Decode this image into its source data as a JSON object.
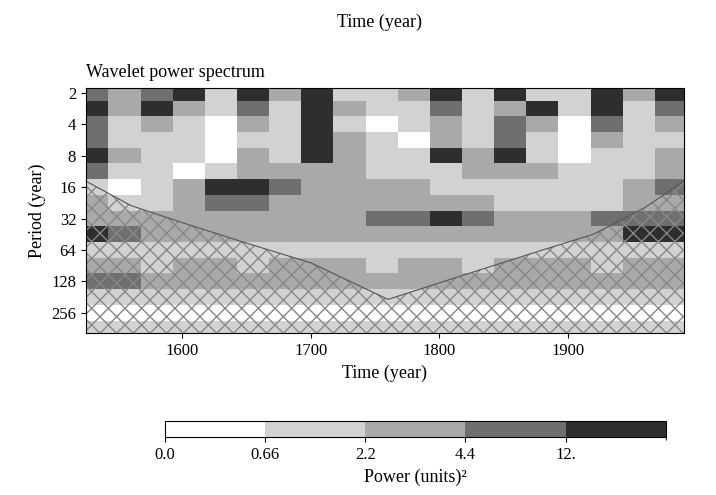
{
  "chart_data": {
    "type": "heatmap",
    "title": "Wavelet power spectrum",
    "top_label": "Time (year)",
    "x_label": "Time (year)",
    "y_label": "Period (year)",
    "log": "y",
    "grid": false,
    "xlim": [
      1525,
      1990
    ],
    "xticks": [
      1600,
      1700,
      1800,
      1900
    ],
    "ylim": [
      400,
      1.8
    ],
    "yticks": [
      2,
      4,
      8,
      16,
      32,
      64,
      128,
      256
    ],
    "x": [
      1530,
      1555,
      1580,
      1605,
      1630,
      1655,
      1680,
      1705,
      1730,
      1755,
      1780,
      1805,
      1830,
      1855,
      1880,
      1905,
      1930,
      1955,
      1980
    ],
    "periods": [
      2,
      2.8,
      4,
      5.7,
      8,
      11,
      16,
      23,
      32,
      45,
      64,
      90,
      128,
      181,
      256,
      362
    ],
    "cells": [
      [
        8,
        3,
        6,
        14,
        1.5,
        14,
        3,
        14,
        1.5,
        1,
        3,
        14,
        1.5,
        14,
        1,
        1.5,
        14,
        3,
        14
      ],
      [
        14,
        3,
        14,
        3,
        1,
        6,
        1.5,
        14,
        3,
        1,
        1,
        6,
        1,
        3,
        14,
        1,
        14,
        1,
        6
      ],
      [
        6,
        1,
        3,
        1,
        0.5,
        3,
        1,
        14,
        1,
        0.5,
        1,
        3,
        1,
        6,
        3,
        0.5,
        6,
        1,
        3
      ],
      [
        6,
        1,
        1.5,
        1,
        0.5,
        1,
        1,
        14,
        3,
        1,
        0.5,
        3,
        1,
        6,
        1,
        0.5,
        3,
        1,
        1.5
      ],
      [
        14,
        3,
        1,
        1,
        0.5,
        3,
        1,
        14,
        3,
        1,
        1,
        14,
        3,
        14,
        1,
        0.5,
        1,
        1,
        3
      ],
      [
        6,
        1.5,
        1,
        0.5,
        1,
        3,
        3,
        3,
        3,
        1,
        1,
        1,
        3,
        3,
        3,
        1,
        1,
        1,
        3
      ],
      [
        1,
        0.5,
        1,
        3,
        14,
        14,
        6,
        3,
        3,
        3,
        3,
        1,
        1,
        1,
        1,
        1,
        1,
        3,
        6
      ],
      [
        3,
        1,
        1,
        3,
        6,
        6,
        3,
        3,
        3,
        3,
        3,
        3,
        3,
        1.5,
        1,
        1,
        1.5,
        3,
        3
      ],
      [
        3,
        3,
        3,
        3,
        3,
        3,
        3,
        3,
        3,
        6,
        6,
        14,
        6,
        3,
        3,
        3,
        6,
        6,
        6
      ],
      [
        14,
        6,
        3,
        3,
        3,
        3,
        3,
        3,
        3,
        3,
        3,
        3,
        3,
        3,
        3,
        3,
        3,
        14,
        14
      ],
      [
        1,
        1,
        1,
        1.5,
        1,
        1,
        1.5,
        1,
        1,
        1,
        1.5,
        1,
        1,
        1.5,
        1,
        1,
        1.5,
        1,
        1
      ],
      [
        3,
        3,
        1.5,
        3,
        3,
        1.5,
        3,
        3,
        3,
        1.5,
        3,
        3,
        1.5,
        3,
        3,
        3,
        1.5,
        3,
        3
      ],
      [
        6,
        6,
        3,
        3,
        3,
        3,
        3,
        3,
        3,
        3,
        3,
        3,
        3,
        3,
        3,
        3,
        3,
        3,
        3
      ],
      [
        1.5,
        1.5,
        1.5,
        1.5,
        1.5,
        1.5,
        1.5,
        1.5,
        1.5,
        1.5,
        1.5,
        1.5,
        1.5,
        1.5,
        1.5,
        1.5,
        1.5,
        1.5,
        1.5
      ],
      [
        0.3,
        0.3,
        0.3,
        0.3,
        0.3,
        0.3,
        0.3,
        0.3,
        0.3,
        0.3,
        0.3,
        0.3,
        0.3,
        0.3,
        0.3,
        0.3,
        0.3,
        0.3,
        0.3
      ],
      [
        1,
        1,
        1,
        1,
        1,
        1,
        1,
        1,
        1,
        1,
        1,
        1,
        1,
        1,
        1,
        1,
        1,
        1,
        1
      ]
    ],
    "coi": {
      "x": [
        1525,
        1560,
        1600,
        1650,
        1700,
        1760,
        1820,
        1870,
        1920,
        1960,
        1990
      ],
      "periods": [
        14,
        24,
        35,
        55,
        85,
        190,
        110,
        70,
        45,
        25,
        14
      ]
    },
    "colorbar": {
      "label": "Power (units)²",
      "levels": [
        0,
        0.66,
        2.2,
        4.4,
        12,
        25
      ],
      "colors": [
        "#ffffff",
        "#d2d2d2",
        "#a9a9a9",
        "#6f6f6f",
        "#2e2e2e"
      ],
      "ticks": [
        {
          "value": 0,
          "label": "0.0"
        },
        0.66,
        2.2,
        4.4,
        {
          "value": 12,
          "label": "12."
        }
      ]
    }
  }
}
